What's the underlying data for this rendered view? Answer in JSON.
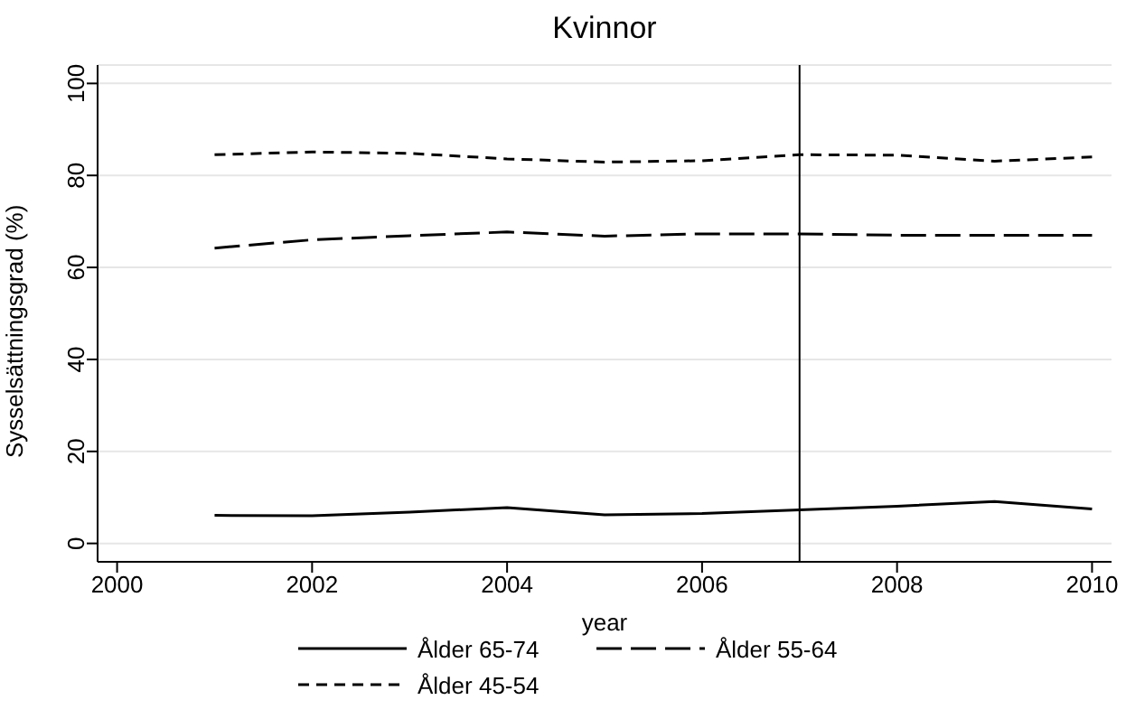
{
  "chart_data": {
    "type": "line",
    "title": "Kvinnor",
    "xlabel": "year",
    "ylabel": "Sysselsättningsgrad (%)",
    "x": [
      2001,
      2002,
      2003,
      2004,
      2005,
      2006,
      2007,
      2008,
      2009,
      2010
    ],
    "series": [
      {
        "name": "Ålder 65-74",
        "color": "#000000",
        "line_style": "solid",
        "values": [
          6.1,
          6.0,
          6.8,
          7.8,
          6.2,
          6.5,
          7.3,
          8.1,
          9.1,
          7.5
        ]
      },
      {
        "name": "Ålder 55-64",
        "color": "#000000",
        "line_style": "dashed",
        "values": [
          64.2,
          66.0,
          66.9,
          67.7,
          66.8,
          67.3,
          67.3,
          67.0,
          67.0,
          67.0
        ]
      },
      {
        "name": "Ålder 45-54",
        "color": "#000000",
        "line_style": "dashed",
        "values": [
          84.5,
          85.1,
          84.8,
          83.6,
          82.9,
          83.2,
          84.5,
          84.4,
          83.1,
          84.0
        ]
      }
    ],
    "xlim": [
      1999.8,
      2010.2
    ],
    "xticks": [
      2000,
      2002,
      2004,
      2006,
      2008,
      2010
    ],
    "ylim": [
      -4,
      104
    ],
    "yticks": [
      0,
      20,
      40,
      60,
      80,
      100
    ],
    "grid": "y",
    "legend": "bottom",
    "marker": "none",
    "ref_lines": [
      {
        "axis": "x",
        "value": 2007,
        "color": "#000000"
      }
    ]
  }
}
